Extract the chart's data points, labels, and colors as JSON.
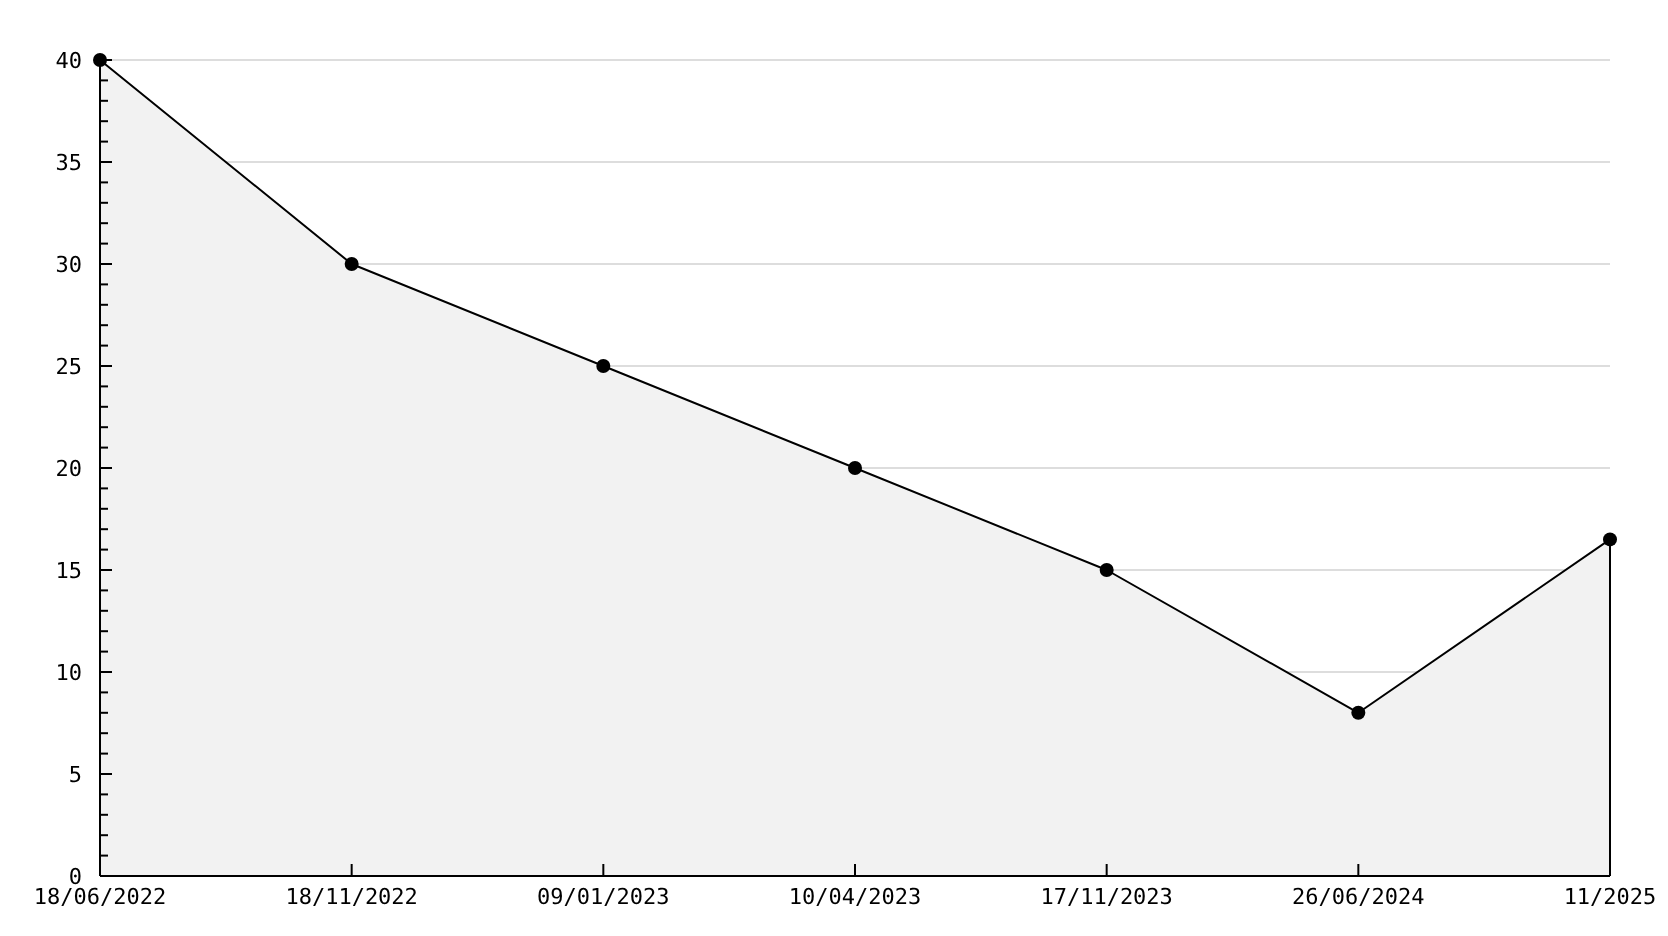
{
  "chart_data": {
    "type": "area",
    "categories": [
      "18/06/2022",
      "18/11/2022",
      "09/01/2023",
      "10/04/2023",
      "17/11/2023",
      "26/06/2024",
      "11/2025"
    ],
    "series": [
      {
        "color": "#000000",
        "values": [
          40,
          30,
          25,
          20,
          15,
          8,
          16.5
        ]
      }
    ],
    "ylim": [
      0,
      40
    ],
    "yticks": [
      0,
      {
        "value": 1,
        "label": null
      },
      {
        "value": 2,
        "label": null
      },
      {
        "value": 3,
        "label": null
      },
      {
        "value": 4,
        "label": null
      },
      5,
      {
        "value": 6,
        "label": null
      },
      {
        "value": 7,
        "label": null
      },
      {
        "value": 8,
        "label": null
      },
      {
        "value": 9,
        "label": null
      },
      10,
      {
        "value": 11,
        "label": null
      },
      {
        "value": 12,
        "label": null
      },
      {
        "value": 13,
        "label": null
      },
      {
        "value": 14,
        "label": null
      },
      15,
      {
        "value": 16,
        "label": null
      },
      {
        "value": 17,
        "label": null
      },
      {
        "value": 18,
        "label": null
      },
      {
        "value": 19,
        "label": null
      },
      20,
      {
        "value": 21,
        "label": null
      },
      {
        "value": 22,
        "label": null
      },
      {
        "value": 23,
        "label": null
      },
      {
        "value": 24,
        "label": null
      },
      25,
      {
        "value": 26,
        "label": null
      },
      {
        "value": 27,
        "label": null
      },
      {
        "value": 28,
        "label": null
      },
      {
        "value": 29,
        "label": null
      },
      30,
      {
        "value": 31,
        "label": null
      },
      {
        "value": 32,
        "label": null
      },
      {
        "value": 33,
        "label": null
      },
      {
        "value": 34,
        "label": null
      },
      35,
      {
        "value": 36,
        "label": null
      },
      {
        "value": 37,
        "label": null
      },
      {
        "value": 38,
        "label": null
      },
      {
        "value": 39,
        "label": null
      },
      40
    ],
    "grid": "y",
    "marker": "circle",
    "line_style": "solid"
  }
}
